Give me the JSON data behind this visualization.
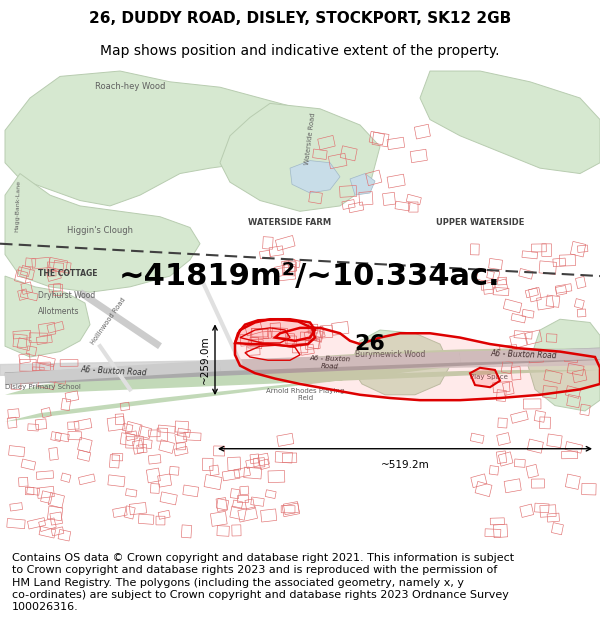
{
  "title_line1": "26, DUDDY ROAD, DISLEY, STOCKPORT, SK12 2GB",
  "title_line2": "Map shows position and indicative extent of the property.",
  "area_text": "~41819m²/~10.334ac.",
  "width_label": "~519.2m",
  "height_label": "~259.0m",
  "property_number": "26",
  "footer_text": "Contains OS data © Crown copyright and database right 2021. This information is subject to Crown copyright and database rights 2023 and is reproduced with the permission of HM Land Registry. The polygons (including the associated geometry, namely x, y co-ordinates) are subject to Crown copyright and database rights 2023 Ordnance Survey 100026316.",
  "bg_color": "#ffffff",
  "title_fontsize": 11,
  "subtitle_fontsize": 10,
  "area_fontsize": 22,
  "footer_fontsize": 8.0,
  "green_color": "#d6e8d0",
  "green_edge": "#b8ccb0",
  "canal_green": "#c2d9b8",
  "blue_water": "#c8dde8",
  "road_gray": "#c8c8c8",
  "road_dark": "#888888",
  "building_red": "#e07070",
  "property_red": "#dd0000",
  "property_fill": "#ff000018",
  "dim_color": "#000000",
  "text_gray": "#606060",
  "text_dark": "#404040"
}
